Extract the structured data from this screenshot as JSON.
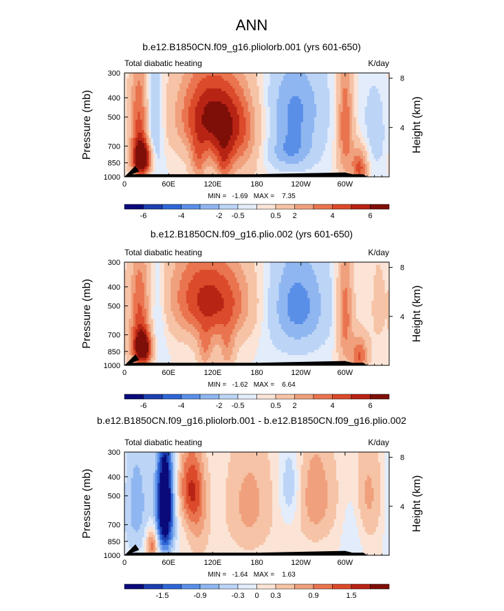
{
  "figure_title": "ANN",
  "colors": {
    "blues": [
      "#0a0a7a",
      "#1c3fb0",
      "#2f66d6",
      "#5a8fe8",
      "#8fb6f0",
      "#bcd4f6",
      "#e2ecfb"
    ],
    "reds": [
      "#fbe4d6",
      "#f6c3a6",
      "#f0a07c",
      "#e9744f",
      "#db4a2a",
      "#b82414",
      "#7e0f08"
    ],
    "land": "#000000"
  },
  "chart_data": [
    {
      "type": "contour",
      "title": "b.e12.B1850CN.f09_g16.pliolorb.001 (yrs 601-650)",
      "left_label": "Total diabatic heating",
      "units": "K/day",
      "ylabel": "Pressure (mb)",
      "y2label": "Height (km)",
      "x_ticks": [
        "0",
        "60E",
        "120E",
        "180",
        "120W",
        "60W"
      ],
      "y_ticks": [
        "300",
        "400",
        "500",
        "700",
        "850",
        "1000"
      ],
      "y2_ticks": [
        "8",
        "4"
      ],
      "stats": "MIN =   -1.69   MAX =    7.35",
      "colorbar_labels": [
        "-6",
        "-4",
        "-2",
        "-0.5",
        "0.5",
        "2",
        "4",
        "6"
      ],
      "features": [
        {
          "lon": 25,
          "p": 820,
          "amp": 3.0,
          "sx": 10,
          "sp": 120
        },
        {
          "lon": 20,
          "p": 520,
          "amp": 1.6,
          "sx": 10,
          "sp": 260
        },
        {
          "lon": 40,
          "p": 600,
          "amp": -1.2,
          "sx": 8,
          "sp": 300
        },
        {
          "lon": 125,
          "p": 500,
          "amp": 1.6,
          "sx": 40,
          "sp": 180
        },
        {
          "lon": 110,
          "p": 460,
          "amp": 0.8,
          "sx": 25,
          "sp": 220
        },
        {
          "lon": 100,
          "p": 850,
          "amp": 1.0,
          "sx": 8,
          "sp": 150
        },
        {
          "lon": 135,
          "p": 850,
          "amp": 0.9,
          "sx": 8,
          "sp": 150
        },
        {
          "lon": 150,
          "p": 700,
          "amp": 1.0,
          "sx": 25,
          "sp": 250
        },
        {
          "lon": 230,
          "p": 450,
          "amp": -1.3,
          "sx": 30,
          "sp": 180
        },
        {
          "lon": 225,
          "p": 760,
          "amp": -1.0,
          "sx": 25,
          "sp": 120
        },
        {
          "lon": 300,
          "p": 550,
          "amp": 1.6,
          "sx": 8,
          "sp": 300
        },
        {
          "lon": 320,
          "p": 900,
          "amp": 1.8,
          "sx": 8,
          "sp": 150
        },
        {
          "lon": 340,
          "p": 600,
          "amp": -0.5,
          "sx": 15,
          "sp": 250
        }
      ],
      "land": [
        [
          15,
          880
        ],
        [
          20,
          940
        ],
        [
          10,
          970
        ],
        [
          85,
          970
        ],
        [
          180,
          970
        ],
        [
          300,
          950
        ],
        [
          310,
          970
        ],
        [
          325,
          970
        ]
      ]
    },
    {
      "type": "contour",
      "title": "b.e12.B1850CN.f09_g16.plio.002 (yrs 601-650)",
      "left_label": "Total diabatic heating",
      "units": "K/day",
      "ylabel": "Pressure (mb)",
      "y2label": "Height (km)",
      "x_ticks": [
        "0",
        "60E",
        "120E",
        "180",
        "120W",
        "60W"
      ],
      "y_ticks": [
        "300",
        "400",
        "500",
        "700",
        "850",
        "1000"
      ],
      "y2_ticks": [
        "8",
        "4"
      ],
      "stats": "MIN =   -1.62   MAX =    6.64",
      "colorbar_labels": [
        "-6",
        "-4",
        "-2",
        "-0.5",
        "0.5",
        "2",
        "4",
        "6"
      ],
      "features": [
        {
          "lon": 25,
          "p": 820,
          "amp": 2.8,
          "sx": 10,
          "sp": 120
        },
        {
          "lon": 20,
          "p": 520,
          "amp": 1.5,
          "sx": 10,
          "sp": 260
        },
        {
          "lon": 45,
          "p": 600,
          "amp": -0.6,
          "sx": 8,
          "sp": 300
        },
        {
          "lon": 130,
          "p": 480,
          "amp": 1.7,
          "sx": 35,
          "sp": 180
        },
        {
          "lon": 90,
          "p": 430,
          "amp": 0.9,
          "sx": 30,
          "sp": 180
        },
        {
          "lon": 110,
          "p": 850,
          "amp": 1.0,
          "sx": 8,
          "sp": 150
        },
        {
          "lon": 140,
          "p": 850,
          "amp": 0.9,
          "sx": 8,
          "sp": 150
        },
        {
          "lon": 235,
          "p": 500,
          "amp": -1.4,
          "sx": 30,
          "sp": 220
        },
        {
          "lon": 300,
          "p": 550,
          "amp": 1.5,
          "sx": 8,
          "sp": 300
        },
        {
          "lon": 320,
          "p": 900,
          "amp": 1.6,
          "sx": 8,
          "sp": 150
        },
        {
          "lon": 345,
          "p": 500,
          "amp": 0.4,
          "sx": 10,
          "sp": 250
        }
      ],
      "land": [
        [
          15,
          880
        ],
        [
          20,
          940
        ],
        [
          10,
          970
        ],
        [
          95,
          970
        ],
        [
          185,
          970
        ],
        [
          300,
          950
        ],
        [
          310,
          970
        ],
        [
          325,
          970
        ]
      ]
    },
    {
      "type": "contour",
      "title": "b.e12.B1850CN.f09_g16.pliolorb.001 - b.e12.B1850CN.f09_g16.plio.002",
      "left_label": "Total diabatic heating",
      "units": "K/day",
      "ylabel": "Pressure (mb)",
      "y2label": "Height (km)",
      "x_ticks": [
        "0",
        "60E",
        "120E",
        "180",
        "120W",
        "60W"
      ],
      "y_ticks": [
        "300",
        "400",
        "500",
        "700",
        "850",
        "1000"
      ],
      "y2_ticks": [
        "8",
        "4"
      ],
      "stats": "MIN =   -1.64   MAX =    1.63",
      "colorbar_labels": [
        "-1.5",
        "-0.9",
        "-0.3",
        "0",
        "0.3",
        "0.9",
        "1.5"
      ],
      "features": [
        {
          "lon": 55,
          "p": 450,
          "amp": -2.2,
          "sx": 8,
          "sp": 200
        },
        {
          "lon": 55,
          "p": 750,
          "amp": -1.4,
          "sx": 9,
          "sp": 180
        },
        {
          "lon": 15,
          "p": 550,
          "amp": -0.8,
          "sx": 15,
          "sp": 300
        },
        {
          "lon": 38,
          "p": 880,
          "amp": 1.3,
          "sx": 6,
          "sp": 120
        },
        {
          "lon": 90,
          "p": 450,
          "amp": 1.3,
          "sx": 12,
          "sp": 150
        },
        {
          "lon": 100,
          "p": 700,
          "amp": 0.6,
          "sx": 12,
          "sp": 250
        },
        {
          "lon": 170,
          "p": 550,
          "amp": 0.7,
          "sx": 25,
          "sp": 300
        },
        {
          "lon": 225,
          "p": 450,
          "amp": -0.7,
          "sx": 10,
          "sp": 150
        },
        {
          "lon": 260,
          "p": 500,
          "amp": 0.8,
          "sx": 20,
          "sp": 250
        },
        {
          "lon": 330,
          "p": 500,
          "amp": 0.7,
          "sx": 20,
          "sp": 250
        },
        {
          "lon": 310,
          "p": 700,
          "amp": -0.5,
          "sx": 10,
          "sp": 300
        }
      ],
      "land": [
        [
          15,
          880
        ],
        [
          20,
          940
        ],
        [
          10,
          970
        ],
        [
          85,
          970
        ],
        [
          185,
          970
        ],
        [
          300,
          950
        ],
        [
          310,
          970
        ],
        [
          325,
          970
        ]
      ]
    }
  ]
}
